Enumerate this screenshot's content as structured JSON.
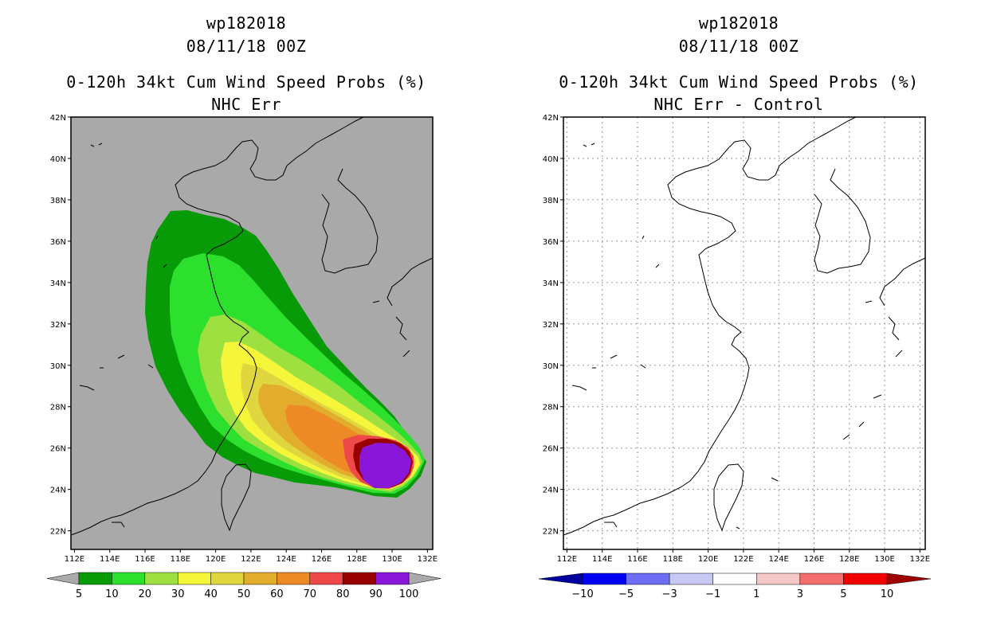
{
  "left_panel": {
    "storm_id": "wp182018",
    "datetime": "08/11/18 00Z",
    "product": "0-120h 34kt Cum Wind Speed Probs (%)",
    "subtitle": "NHC Err",
    "colorbar": {
      "labels": [
        "5",
        "10",
        "20",
        "30",
        "40",
        "50",
        "60",
        "70",
        "80",
        "90",
        "100"
      ],
      "colors": [
        "#089b08",
        "#2de02d",
        "#9de040",
        "#f5f53a",
        "#e0d640",
        "#e2ad2d",
        "#ee8a26",
        "#ee4848",
        "#980000",
        "#8a16da"
      ],
      "arrow_color": "#aaaaaa"
    },
    "map_background": "#a9a9a9"
  },
  "right_panel": {
    "storm_id": "wp182018",
    "datetime": "08/11/18 00Z",
    "product": "0-120h 34kt Cum Wind Speed Probs (%)",
    "subtitle": "NHC Err - Control",
    "colorbar": {
      "labels": [
        "−10",
        "−5",
        "−3",
        "−1",
        "1",
        "3",
        "5",
        "10"
      ],
      "colors": [
        "#0000c0",
        "#0000f5",
        "#6e6ef5",
        "#c8c8f5",
        "#ffffff",
        "#f5c8c8",
        "#f56e6e",
        "#f50000",
        "#b80000"
      ],
      "left_arrow_color": "#0000a0",
      "right_arrow_color": "#a00000"
    },
    "map_background": "#ffffff"
  },
  "axes": {
    "lon_labels": [
      "112E",
      "114E",
      "116E",
      "118E",
      "120E",
      "122E",
      "124E",
      "126E",
      "128E",
      "130E",
      "132E"
    ],
    "lat_labels": [
      "22N",
      "24N",
      "26N",
      "28N",
      "30N",
      "32N",
      "34N",
      "36N",
      "38N",
      "40N",
      "42N"
    ],
    "lon_range": [
      111.8,
      132.3
    ],
    "lat_range": [
      21.1,
      42.0
    ]
  },
  "probability_field": {
    "center_lon": 129.8,
    "center_lat": 25.3,
    "levels": [
      5,
      10,
      20,
      30,
      40,
      50,
      60,
      70,
      80,
      90
    ]
  }
}
